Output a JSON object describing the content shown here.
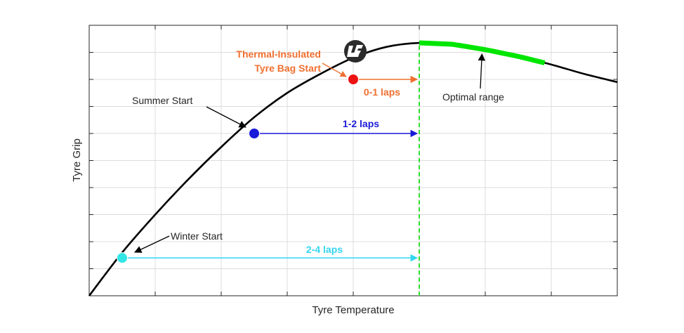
{
  "chart_data": {
    "type": "line",
    "xlabel": "Tyre Temperature",
    "ylabel": "Tyre Grip",
    "xlim": [
      0,
      8
    ],
    "ylim": [
      0,
      10
    ],
    "grid": true,
    "curve": {
      "x": [
        0,
        0.5,
        1,
        1.5,
        2,
        2.5,
        3,
        3.5,
        4,
        4.5,
        5,
        5.5,
        6,
        6.5,
        7,
        7.5,
        8
      ],
      "y": [
        0,
        1.6,
        3.0,
        4.3,
        5.5,
        6.6,
        7.5,
        8.2,
        8.8,
        9.2,
        9.35,
        9.3,
        9.1,
        8.85,
        8.55,
        8.2,
        7.9
      ],
      "color": "#000000"
    },
    "optimal_range": {
      "x": [
        5,
        6.9
      ],
      "color": "#00e600",
      "label": "Optimal range"
    },
    "optimal_threshold_x": 5,
    "start_points": [
      {
        "label": "Winter Start",
        "x": 0.5,
        "y": 1.4,
        "color": "#33e6e6",
        "arrow_label": "2-4 laps",
        "arrow_color": "#33d6f0"
      },
      {
        "label": "Summer Start",
        "x": 2.5,
        "y": 6.0,
        "color": "#1a1ad9",
        "arrow_label": "1-2 laps",
        "arrow_color": "#1a1ad9"
      },
      {
        "label": "Thermal-Insulated\nTyre Bag Start",
        "label_lines": [
          "Thermal-Insulated",
          "Tyre Bag Start"
        ],
        "x": 4.0,
        "y": 8.0,
        "color": "#ee1111",
        "arrow_label": "0-1 laps",
        "arrow_color": "#f07030",
        "label_color": "#f07030"
      }
    ]
  },
  "logo": {
    "icon": "ls-logo-icon"
  }
}
